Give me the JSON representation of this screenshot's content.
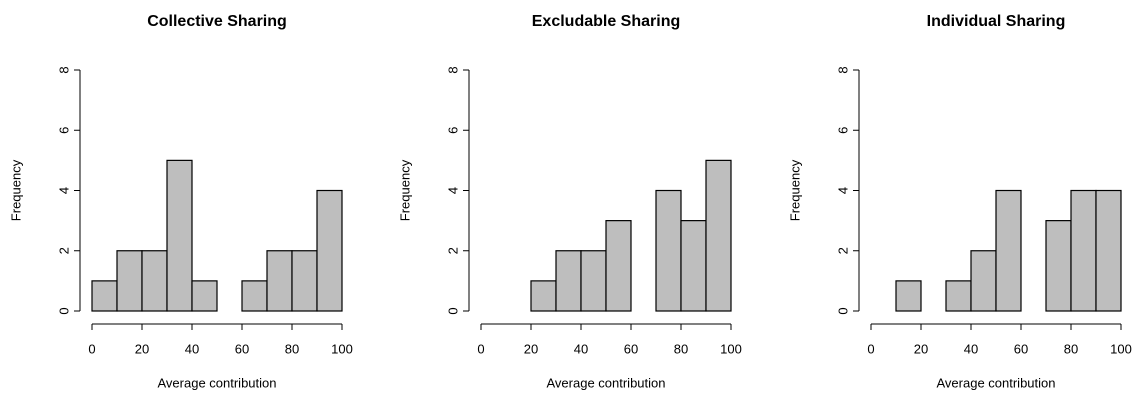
{
  "chart_data": [
    {
      "type": "histogram",
      "title": "Collective Sharing",
      "x_label": "Average contribution",
      "y_label": "Frequency",
      "bins": [
        0,
        10,
        20,
        30,
        40,
        50,
        60,
        70,
        80,
        90,
        100
      ],
      "values": [
        1,
        2,
        2,
        5,
        1,
        0,
        1,
        2,
        2,
        4
      ],
      "color": "#bebebe",
      "xlim": [
        0,
        100
      ],
      "xticks": [
        0,
        20,
        40,
        60,
        80,
        100
      ],
      "ylim": [
        0,
        8
      ],
      "yticks": [
        0,
        2,
        4,
        6,
        8
      ]
    },
    {
      "type": "histogram",
      "title": "Excludable Sharing",
      "x_label": "Average contribution",
      "y_label": "Frequency",
      "bins": [
        0,
        10,
        20,
        30,
        40,
        50,
        60,
        70,
        80,
        90,
        100
      ],
      "values": [
        0,
        0,
        1,
        2,
        2,
        3,
        0,
        4,
        3,
        5
      ],
      "color": "#bebebe",
      "xlim": [
        0,
        100
      ],
      "xticks": [
        0,
        20,
        40,
        60,
        80,
        100
      ],
      "ylim": [
        0,
        8
      ],
      "yticks": [
        0,
        2,
        4,
        6,
        8
      ]
    },
    {
      "type": "histogram",
      "title": "Individual Sharing",
      "x_label": "Average contribution",
      "y_label": "Frequency",
      "bins": [
        0,
        10,
        20,
        30,
        40,
        50,
        60,
        70,
        80,
        90,
        100
      ],
      "values": [
        0,
        1,
        0,
        1,
        2,
        4,
        0,
        3,
        4,
        4
      ],
      "color": "#bebebe",
      "xlim": [
        0,
        100
      ],
      "xticks": [
        0,
        20,
        40,
        60,
        80,
        100
      ],
      "ylim": [
        0,
        8
      ],
      "yticks": [
        0,
        2,
        4,
        6,
        8
      ]
    }
  ]
}
